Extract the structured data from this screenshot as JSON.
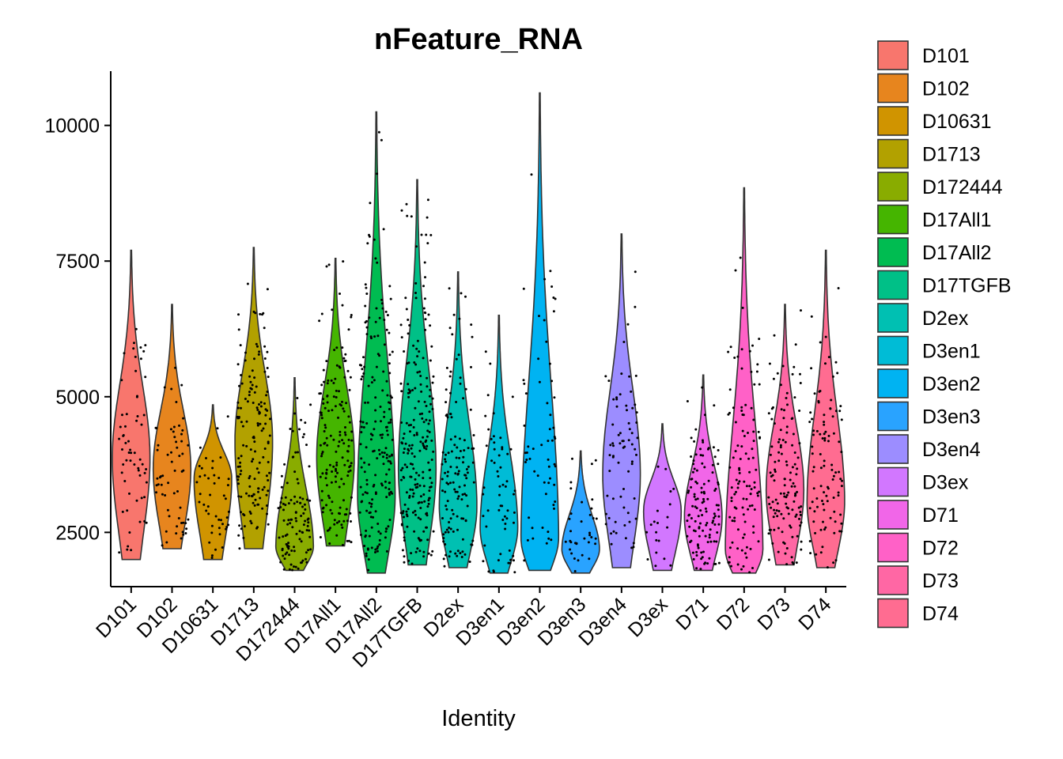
{
  "chart_data": {
    "type": "violin",
    "title": "nFeature_RNA",
    "xlabel": "Identity",
    "ylabel": "",
    "ylim": [
      1500,
      11000
    ],
    "yticks": [
      2500,
      5000,
      7500,
      10000
    ],
    "legend_position": "right",
    "categories": [
      "D101",
      "D102",
      "D10631",
      "D1713",
      "D172444",
      "D17All1",
      "D17All2",
      "D17TGFB",
      "D2ex",
      "D3en1",
      "D3en2",
      "D3en3",
      "D3en4",
      "D3ex",
      "D71",
      "D72",
      "D73",
      "D74"
    ],
    "colors": [
      "#F8766D",
      "#E7851E",
      "#D09400",
      "#B2A100",
      "#89AC00",
      "#45B500",
      "#00BC51",
      "#00C087",
      "#00C0B2",
      "#00BCD6",
      "#00B3F2",
      "#29A3FF",
      "#9C8DFF",
      "#D277FF",
      "#F166E8",
      "#FF61C7",
      "#FF67A4",
      "#FF6C91"
    ],
    "series": [
      {
        "name": "D101",
        "min": 2000,
        "max": 7700,
        "median": 3900,
        "n": 60
      },
      {
        "name": "D102",
        "min": 2200,
        "max": 6700,
        "median": 3700,
        "n": 60
      },
      {
        "name": "D10631",
        "min": 2000,
        "max": 4850,
        "median": 3500,
        "n": 45
      },
      {
        "name": "D1713",
        "min": 2200,
        "max": 7750,
        "median": 4200,
        "n": 150
      },
      {
        "name": "D172444",
        "min": 1800,
        "max": 5350,
        "median": 2250,
        "n": 110
      },
      {
        "name": "D17All1",
        "min": 2250,
        "max": 7550,
        "median": 3900,
        "n": 160
      },
      {
        "name": "D17All2",
        "min": 1750,
        "max": 10250,
        "median": 3200,
        "n": 190
      },
      {
        "name": "D17TGFB",
        "min": 1900,
        "max": 9000,
        "median": 3700,
        "n": 220
      },
      {
        "name": "D2ex",
        "min": 1850,
        "max": 7300,
        "median": 3000,
        "n": 130
      },
      {
        "name": "D3en1",
        "min": 1750,
        "max": 6500,
        "median": 2600,
        "n": 60
      },
      {
        "name": "D3en2",
        "min": 1800,
        "max": 10600,
        "median": 2400,
        "n": 60
      },
      {
        "name": "D3en3",
        "min": 1750,
        "max": 4000,
        "median": 2200,
        "n": 35
      },
      {
        "name": "D3en4",
        "min": 1850,
        "max": 8000,
        "median": 3600,
        "n": 70
      },
      {
        "name": "D3ex",
        "min": 1800,
        "max": 4500,
        "median": 2900,
        "n": 20
      },
      {
        "name": "D71",
        "min": 1800,
        "max": 5400,
        "median": 2800,
        "n": 120
      },
      {
        "name": "D72",
        "min": 1750,
        "max": 8850,
        "median": 2200,
        "n": 110
      },
      {
        "name": "D73",
        "min": 1900,
        "max": 6700,
        "median": 3300,
        "n": 130
      },
      {
        "name": "D74",
        "min": 1850,
        "max": 7700,
        "median": 3100,
        "n": 100
      }
    ]
  }
}
